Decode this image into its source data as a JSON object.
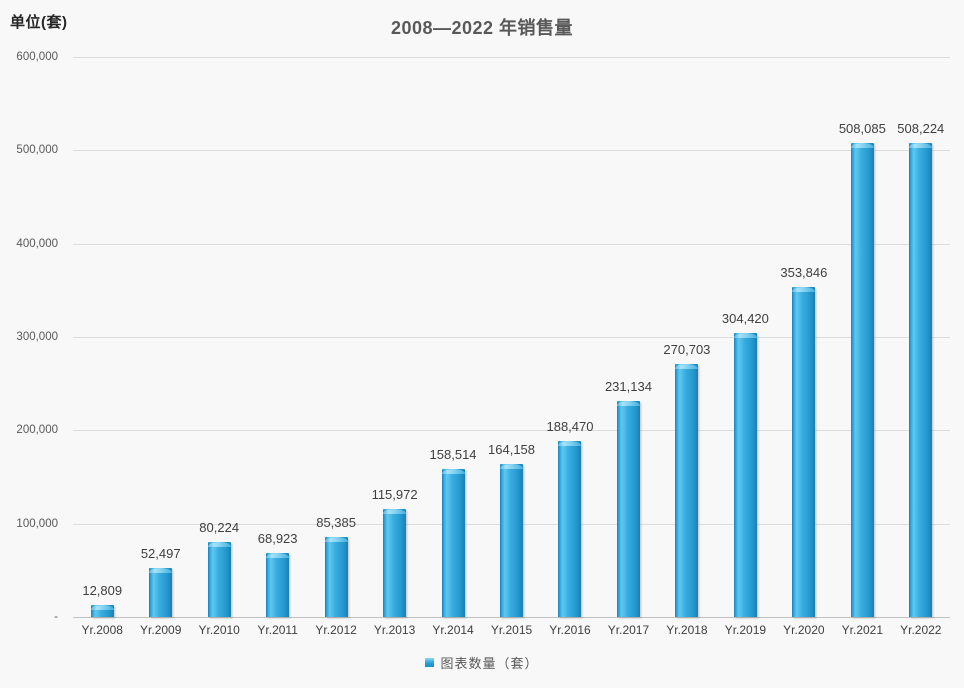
{
  "chart": {
    "unit_label": "单位(套)",
    "title": "2008—2022 年销售量",
    "legend_label": "图表数量（套）"
  },
  "colors": {
    "bar_main": "#2aa3d9",
    "bar_highlight": "#5ec9f0",
    "bar_edge": "#1a7fb5",
    "background": "#f8f8f8",
    "gridline": "#dcdcdc",
    "axis_line": "#c2c2c2",
    "title_text": "#595959",
    "value_label_text": "#3f3f3f",
    "tick_text": "#595959"
  },
  "chart_data": {
    "type": "bar",
    "title": "2008—2022 年销售量",
    "ylabel": "单位(套)",
    "xlabel": "",
    "categories": [
      "Yr.2008",
      "Yr.2009",
      "Yr.2010",
      "Yr.2011",
      "Yr.2012",
      "Yr.2013",
      "Yr.2014",
      "Yr.2015",
      "Yr.2016",
      "Yr.2017",
      "Yr.2018",
      "Yr.2019",
      "Yr.2020",
      "Yr.2021",
      "Yr.2022"
    ],
    "values": [
      12809,
      52497,
      80224,
      68923,
      85385,
      115972,
      158514,
      164158,
      188470,
      231134,
      270703,
      304420,
      353846,
      508085,
      508224
    ],
    "value_labels": [
      "12,809",
      "52,497",
      "80,224",
      "68,923",
      "85,385",
      "115,972",
      "158,514",
      "164,158",
      "188,470",
      "231,134",
      "270,703",
      "304,420",
      "353,846",
      "508,085",
      "508,224"
    ],
    "series_name": "图表数量（套）",
    "ylim": [
      0,
      600000
    ],
    "ytick_interval": 100000,
    "ytick_labels": [
      "600,000",
      "500,000",
      "400,000",
      "300,000",
      "200,000",
      "100,000",
      "-"
    ],
    "grid": true,
    "legend_position": "bottom-center",
    "bar_color": "#2aa3d9"
  }
}
